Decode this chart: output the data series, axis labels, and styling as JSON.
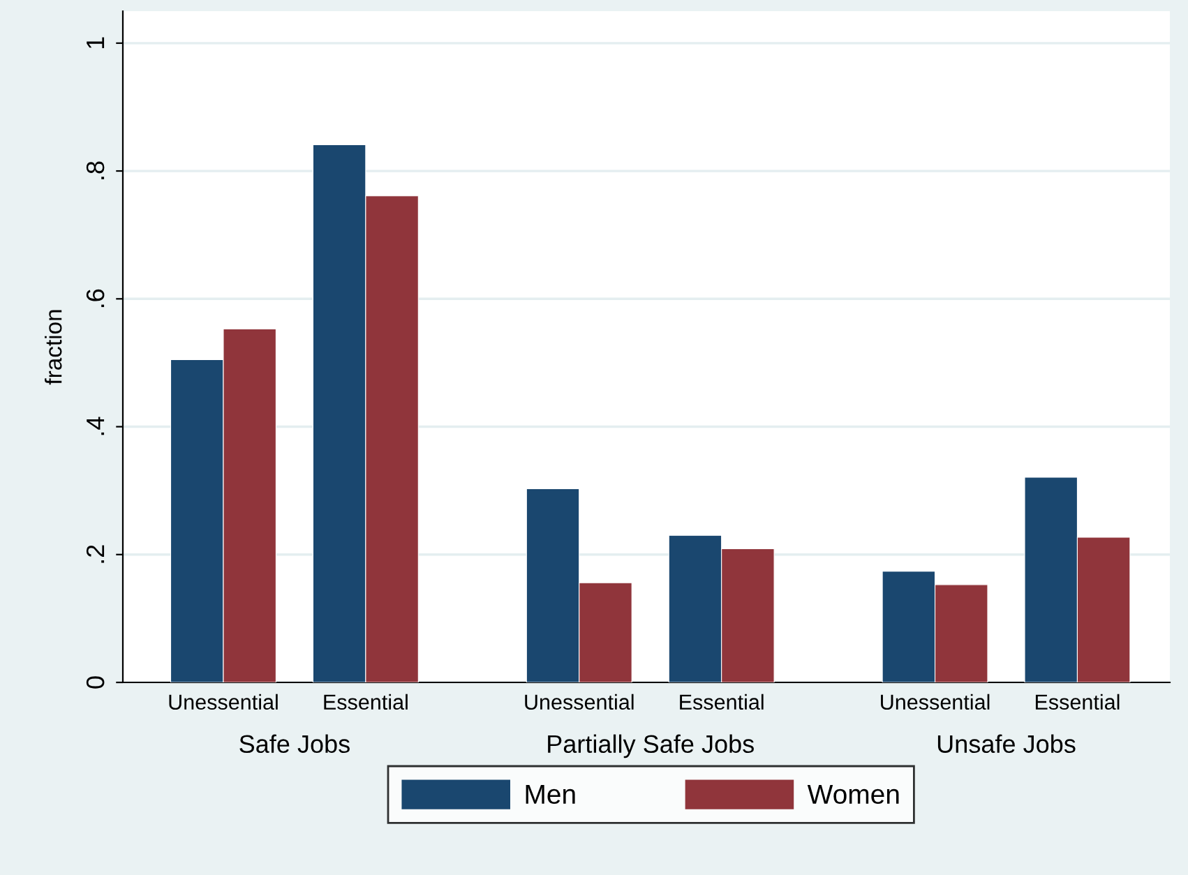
{
  "chart_data": {
    "type": "bar",
    "ylabel": "fraction",
    "categories": [
      "Unessential",
      "Essential",
      "Unessential",
      "Essential",
      "Unessential",
      "Essential"
    ],
    "series": [
      {
        "name": "Men",
        "color": "#1a476f",
        "values": [
          0.505,
          0.841,
          0.303,
          0.23,
          0.174,
          0.321
        ]
      },
      {
        "name": "Women",
        "color": "#90353b",
        "values": [
          0.553,
          0.761,
          0.156,
          0.209,
          0.153,
          0.227
        ]
      }
    ],
    "annotations": [
      "Safe Jobs",
      "Partially Safe Jobs",
      "Unsafe Jobs"
    ],
    "ylim": [
      0,
      1.05
    ],
    "yticks": [
      {
        "value": 0,
        "label": "0"
      },
      {
        "value": 0.2,
        "label": ".2"
      },
      {
        "value": 0.4,
        "label": ".4"
      },
      {
        "value": 0.6,
        "label": ".6"
      },
      {
        "value": 0.8,
        "label": ".8"
      },
      {
        "value": 1,
        "label": "1"
      }
    ],
    "grid": "y",
    "legend": "bottom"
  }
}
